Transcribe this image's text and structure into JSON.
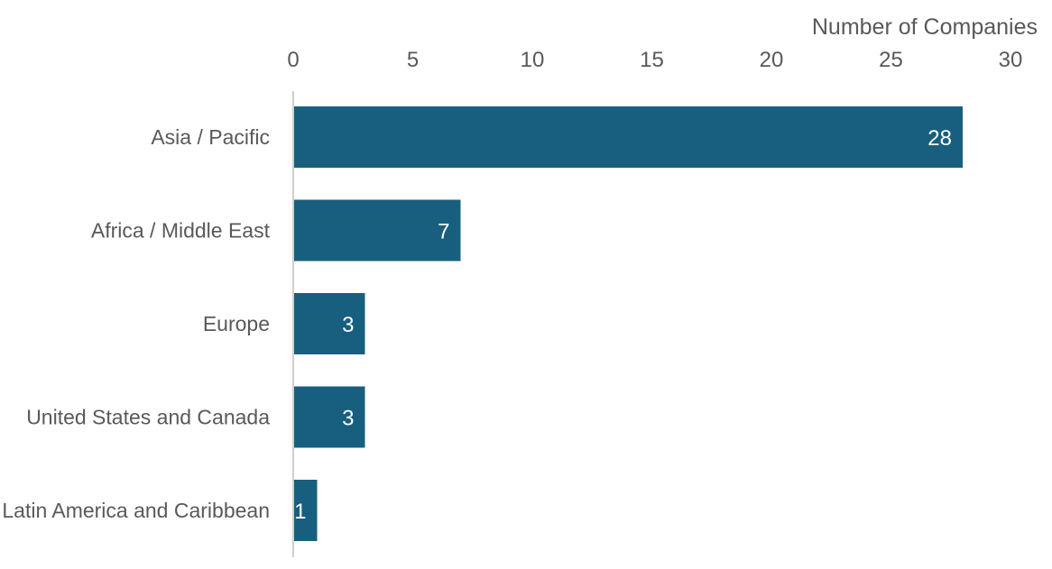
{
  "chart_data": {
    "type": "bar",
    "orientation": "horizontal",
    "title": "",
    "xlabel": "Number of Companies",
    "ylabel": "",
    "xaxis_position": "top",
    "xlim": [
      0,
      30
    ],
    "xticks": [
      0,
      5,
      10,
      15,
      20,
      25,
      30
    ],
    "grid": false,
    "legend": "none",
    "bar_color": "#185f7f",
    "categories": [
      "Asia / Pacific",
      "Africa / Middle East",
      "Europe",
      "United States and Canada",
      "Latin America and Caribbean"
    ],
    "values": [
      28,
      7,
      3,
      3,
      1
    ],
    "data_labels": [
      "28",
      "7",
      "3",
      "3",
      "1"
    ]
  }
}
